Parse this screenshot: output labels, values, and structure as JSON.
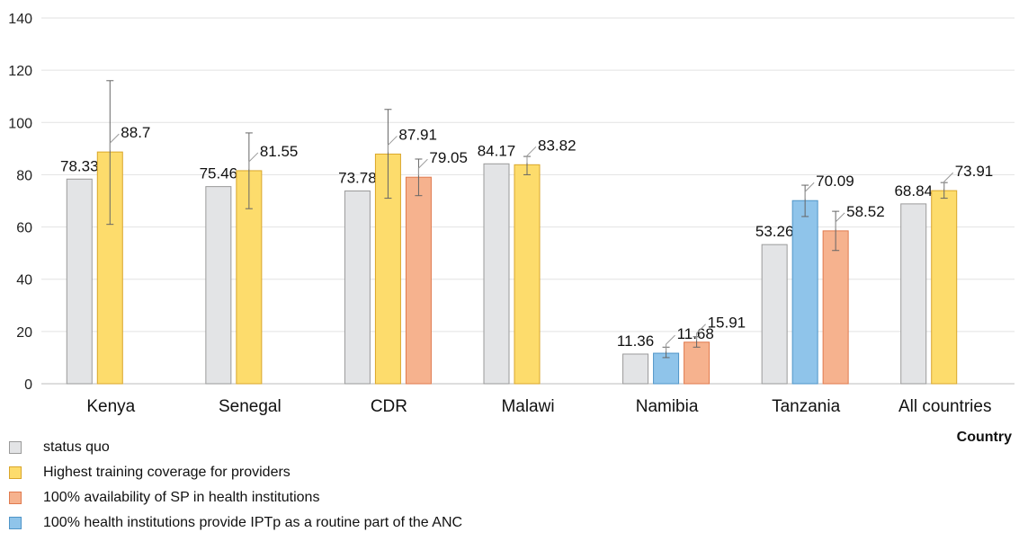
{
  "chart_data": {
    "type": "bar",
    "xlabel": "Country",
    "ylabel": "",
    "ylim": [
      0,
      140
    ],
    "yticks": [
      0,
      20,
      40,
      60,
      80,
      100,
      120,
      140
    ],
    "grid": true,
    "legend_position": "bottom-left",
    "categories": [
      "Kenya",
      "Senegal",
      "CDR",
      "Malawi",
      "Namibia",
      "Tanzania",
      "All countries"
    ],
    "series": [
      {
        "name": "status quo",
        "color": "#e3e4e6",
        "stroke": "#9a9a9a",
        "values": [
          78.33,
          75.46,
          73.78,
          84.17,
          11.36,
          53.26,
          68.84
        ],
        "errors": [
          null,
          null,
          null,
          null,
          null,
          null,
          null
        ]
      },
      {
        "name": "Highest training coverage for providers",
        "color": "#fddc6c",
        "stroke": "#d9a62b",
        "values": [
          88.7,
          81.55,
          87.91,
          83.82,
          null,
          null,
          73.91
        ],
        "errors": [
          [
            61,
            116
          ],
          [
            67,
            96
          ],
          [
            71,
            105
          ],
          [
            80,
            87
          ],
          null,
          null,
          [
            71,
            77
          ]
        ]
      },
      {
        "name": "100% availability of SP in health institutions",
        "color": "#f6b28e",
        "stroke": "#e07a4e",
        "values": [
          null,
          null,
          79.05,
          null,
          15.91,
          58.52,
          null
        ],
        "errors": [
          null,
          null,
          [
            72,
            86
          ],
          null,
          [
            14,
            18
          ],
          [
            51,
            66
          ],
          null
        ]
      },
      {
        "name": "100% health institutions provide IPTp as a routine part of the ANC",
        "color": "#8fc4ea",
        "stroke": "#4f95c8",
        "values": [
          null,
          null,
          null,
          null,
          11.68,
          70.09,
          null
        ],
        "errors": [
          null,
          null,
          null,
          null,
          [
            10,
            14
          ],
          [
            64,
            76
          ],
          null
        ]
      }
    ]
  }
}
